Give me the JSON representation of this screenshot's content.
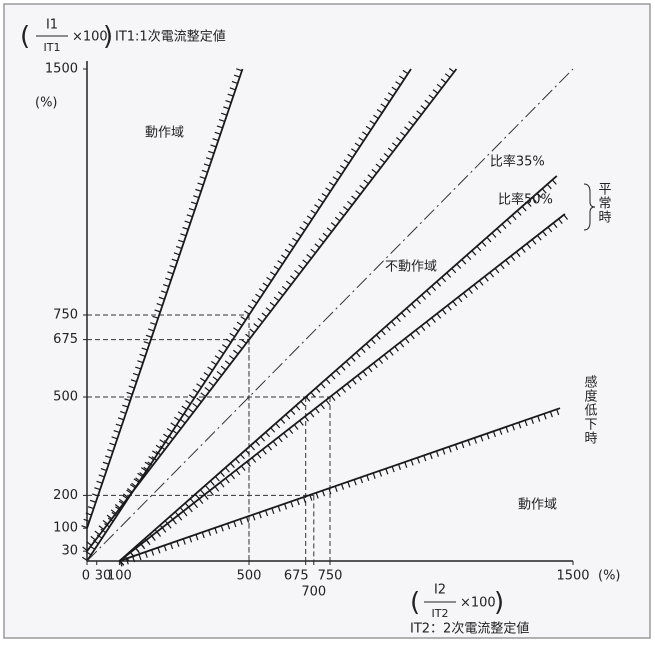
{
  "chart_data": {
    "type": "line",
    "y_label": {
      "numerator": "I1",
      "denominator": "IT1",
      "factor": "×100",
      "note": "IT1:1次電流整定値",
      "unit": "(%)"
    },
    "x_label": {
      "numerator": "I2",
      "denominator": "IT2",
      "factor": "×100",
      "note": "IT2：2次電流整定値",
      "unit": "(%)"
    },
    "xlim": [
      0,
      1500
    ],
    "ylim": [
      0,
      1500
    ],
    "xticks": [
      0,
      30,
      100,
      500,
      675,
      700,
      750,
      1500
    ],
    "yticks": [
      30,
      100,
      200,
      500,
      675,
      750,
      1500
    ],
    "series": [
      {
        "x": [
          0,
          480
        ],
        "values": [
          100,
          1500
        ],
        "color": "#1a1a1a",
        "hatch": "above"
      },
      {
        "x": [
          0,
          1000
        ],
        "values": [
          0,
          1500
        ],
        "color": "#1a1a1a",
        "hatch": "above"
      },
      {
        "x": [
          0,
          1140
        ],
        "values": [
          30,
          1500
        ],
        "color": "#1a1a1a",
        "hatch": "above"
      },
      {
        "x": [
          0,
          1500
        ],
        "values": [
          0,
          1500
        ],
        "color": "#333333",
        "style": "dashdot"
      },
      {
        "name": "比率35%",
        "x": [
          100,
          1450
        ],
        "values": [
          0,
          1174
        ],
        "color": "#1a1a1a",
        "hatch": "below"
      },
      {
        "name": "比率50%",
        "x": [
          100,
          1475
        ],
        "values": [
          0,
          1058
        ],
        "color": "#1a1a1a",
        "hatch": "below"
      },
      {
        "x": [
          100,
          1460
        ],
        "values": [
          0,
          466
        ],
        "color": "#1a1a1a",
        "hatch": "below"
      }
    ],
    "guides": [
      {
        "x": 500,
        "y": 750
      },
      {
        "x": 500,
        "y": 675
      },
      {
        "x": 675,
        "y": 500
      },
      {
        "x": 750,
        "y": 500
      },
      {
        "x": 700,
        "y": 200
      }
    ],
    "annotations": {
      "operating_upper": "動作域",
      "non_operating": "不動作域",
      "normal": "平常時",
      "reduced": "感度低下時",
      "operating_lower": "動作域"
    }
  }
}
